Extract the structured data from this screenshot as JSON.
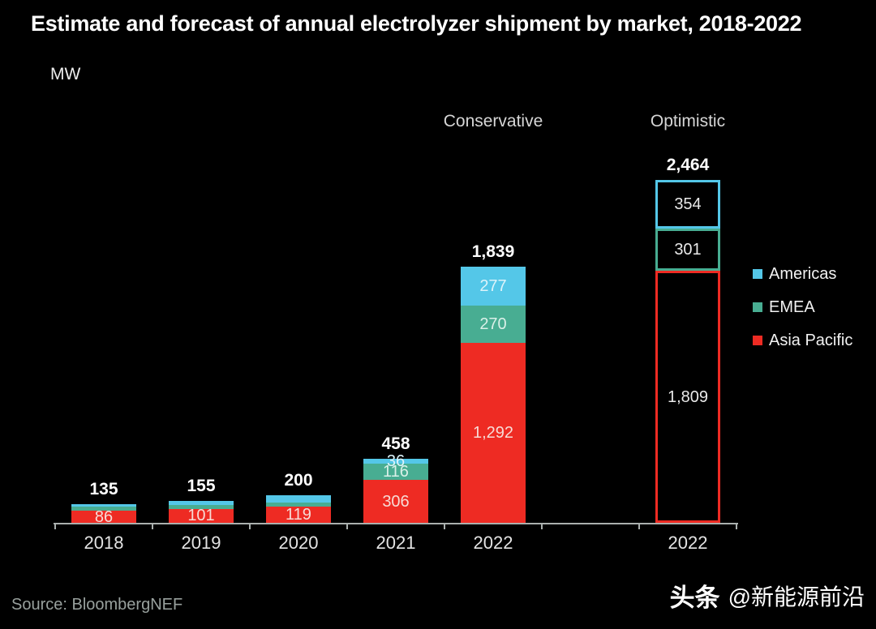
{
  "title": "Estimate and forecast of annual electrolyzer shipment by market, 2018-2022",
  "unit_label": "MW",
  "source_text": "Source: BloombergNEF",
  "watermark": {
    "brand": "头条",
    "handle": "@新能源前沿"
  },
  "background_color": "#000000",
  "chart_data": {
    "type": "bar",
    "stacking": "stacked",
    "title": "Estimate and forecast of annual electrolyzer shipment by market, 2018-2022",
    "unit": "MW",
    "ylim": [
      0,
      2600
    ],
    "grid": false,
    "legend_position": "right",
    "x_categories": [
      "2018",
      "2019",
      "2020",
      "2021",
      "2022",
      "2022"
    ],
    "scenarios": [
      {
        "label": "Conservative",
        "bar_index": 4
      },
      {
        "label": "Optimistic",
        "bar_index": 5
      }
    ],
    "legend": [
      {
        "name": "Americas",
        "color": "#54c7e8"
      },
      {
        "name": "EMEA",
        "color": "#48ad92"
      },
      {
        "name": "Asia Pacific",
        "color": "#ee2b23"
      }
    ],
    "series_order_bottom_to_top": [
      "Asia Pacific",
      "EMEA",
      "Americas"
    ],
    "bars": [
      {
        "category": "2018",
        "total": 135,
        "total_label": "135",
        "style": "solid",
        "segments": [
          {
            "series": "Asia Pacific",
            "value": 86,
            "label": "86"
          },
          {
            "series": "EMEA",
            "value": 30,
            "label": "",
            "estimated": true
          },
          {
            "series": "Americas",
            "value": 19,
            "label": "",
            "estimated": true
          }
        ]
      },
      {
        "category": "2019",
        "total": 155,
        "total_label": "155",
        "style": "solid",
        "segments": [
          {
            "series": "Asia Pacific",
            "value": 101,
            "label": "101"
          },
          {
            "series": "EMEA",
            "value": 28,
            "label": "",
            "estimated": true
          },
          {
            "series": "Americas",
            "value": 26,
            "label": "",
            "estimated": true
          }
        ]
      },
      {
        "category": "2020",
        "total": 200,
        "total_label": "200",
        "style": "solid",
        "segments": [
          {
            "series": "Asia Pacific",
            "value": 119,
            "label": "119"
          },
          {
            "series": "EMEA",
            "value": 25,
            "label": "",
            "estimated": true
          },
          {
            "series": "Americas",
            "value": 56,
            "label": "",
            "estimated": true
          }
        ]
      },
      {
        "category": "2021",
        "total": 458,
        "total_label": "458",
        "style": "solid",
        "segments": [
          {
            "series": "Asia Pacific",
            "value": 306,
            "label": "306"
          },
          {
            "series": "EMEA",
            "value": 116,
            "label": "116"
          },
          {
            "series": "Americas",
            "value": 36,
            "label": "36"
          }
        ]
      },
      {
        "category": "2022",
        "total": 1839,
        "total_label": "1,839",
        "style": "solid",
        "segments": [
          {
            "series": "Asia Pacific",
            "value": 1292,
            "label": "1,292"
          },
          {
            "series": "EMEA",
            "value": 270,
            "label": "270"
          },
          {
            "series": "Americas",
            "value": 277,
            "label": "277"
          }
        ]
      },
      {
        "category": "2022",
        "total": 2464,
        "total_label": "2,464",
        "style": "outline",
        "segments": [
          {
            "series": "Asia Pacific",
            "value": 1809,
            "label": "1,809"
          },
          {
            "series": "EMEA",
            "value": 301,
            "label": "301"
          },
          {
            "series": "Americas",
            "value": 354,
            "label": "354"
          }
        ]
      }
    ]
  }
}
